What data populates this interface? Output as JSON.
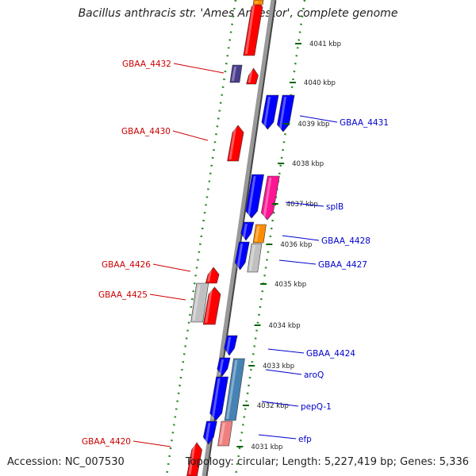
{
  "title": "Bacillus anthracis str. 'Ames Ancestor', complete genome",
  "footer": {
    "accession": "Accession: NC_007530",
    "summary": "Topology: circular; Length: 5,227,419 bp; Genes: 5,336"
  },
  "colors": {
    "backbone": "#999999",
    "tick_dots": "#2e8b2e",
    "reverse_gene": "#ff0000",
    "forward_gene": "#0000ff",
    "reverse_label": "#cc0000",
    "forward_label": "#0000cc",
    "orange_gene": "#ff8c00",
    "magenta_gene": "#ff1493",
    "gray_gene": "#c0c0c0",
    "steelblue_gene": "#4682b4",
    "pink_gene": "#f08080",
    "navy_gene": "#483d8b"
  },
  "kbp_ticks": [
    "4041 kbp",
    "4040 kbp",
    "4039 kbp",
    "4038 kbp",
    "4037 kbp",
    "4036 kbp",
    "4035 kbp",
    "4034 kbp",
    "4033 kbp",
    "4032 kbp",
    "4031 kbp"
  ],
  "reverse_labels": [
    "GBAA_4432",
    "GBAA_4430",
    "GBAA_4426",
    "GBAA_4425",
    "GBAA_4420"
  ],
  "forward_labels": [
    "GBAA_4431",
    "splB",
    "GBAA_4428",
    "GBAA_4427",
    "GBAA_4424",
    "aroQ",
    "pepQ-1",
    "efp"
  ]
}
